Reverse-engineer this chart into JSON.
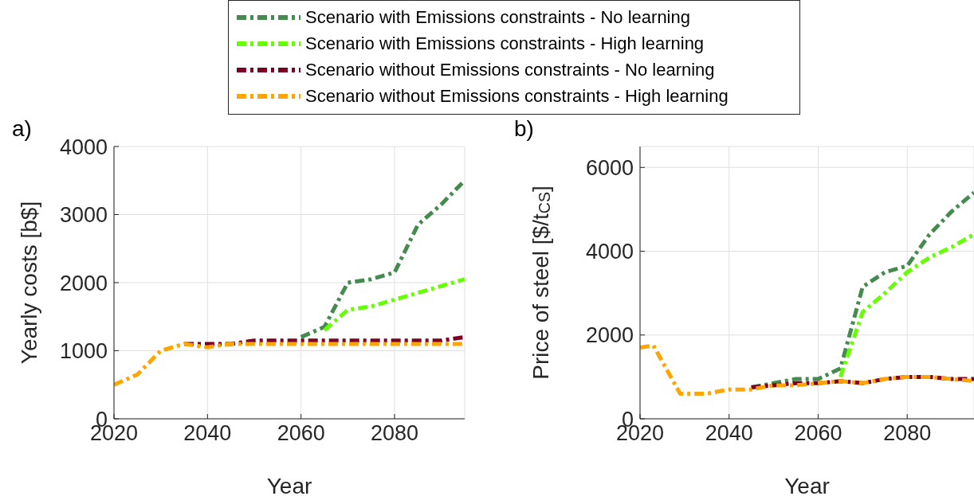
{
  "chart_data": [
    {
      "type": "line",
      "title": "a)",
      "xlabel": "Year",
      "ylabel": "Yearly costs [b$]",
      "x": [
        2020,
        2025,
        2030,
        2035,
        2040,
        2045,
        2050,
        2055,
        2060,
        2065,
        2070,
        2075,
        2080,
        2085,
        2090,
        2095
      ],
      "xlim": [
        2020,
        2095
      ],
      "xticks": [
        2020,
        2040,
        2060,
        2080
      ],
      "ylim": [
        0,
        4000
      ],
      "yticks": [
        0,
        1000,
        2000,
        3000,
        4000
      ],
      "grid": true,
      "legend": "top",
      "line_style": "dashed",
      "series": [
        {
          "name": "Scenario with Emissions constraints - No learning",
          "color": "#458b4f",
          "values": [
            null,
            null,
            null,
            null,
            null,
            null,
            null,
            null,
            1200,
            1350,
            2000,
            2050,
            2150,
            2850,
            3150,
            3500
          ]
        },
        {
          "name": "Scenario with Emissions constraints - High learning",
          "color": "#66ff00",
          "values": [
            null,
            null,
            null,
            null,
            null,
            null,
            null,
            null,
            null,
            1300,
            1600,
            1650,
            1750,
            1850,
            1950,
            2050
          ]
        },
        {
          "name": "Scenario without Emissions constraints - No learning",
          "color": "#7a0026",
          "values": [
            null,
            null,
            null,
            1100,
            1100,
            1100,
            1150,
            1150,
            1150,
            1150,
            1150,
            1150,
            1150,
            1150,
            1150,
            1200
          ]
        },
        {
          "name": "Scenario without Emissions constraints - High learning",
          "color": "#ffa500",
          "values": [
            500,
            650,
            1000,
            1100,
            1050,
            1100,
            1100,
            1100,
            1100,
            1100,
            1100,
            1100,
            1100,
            1100,
            1100,
            1100
          ]
        }
      ]
    },
    {
      "type": "line",
      "title": "b)",
      "xlabel": "Year",
      "ylabel": "Price of steel [$/t$_{CS}$]",
      "x": [
        2020,
        2023,
        2029,
        2035,
        2040,
        2045,
        2050,
        2055,
        2060,
        2065,
        2070,
        2075,
        2080,
        2085,
        2090,
        2095
      ],
      "xlim": [
        2020,
        2095
      ],
      "xticks": [
        2020,
        2040,
        2060,
        2080
      ],
      "ylim": [
        0,
        6500
      ],
      "yticks": [
        0,
        2000,
        4000,
        6000
      ],
      "grid": true,
      "line_style": "dashed",
      "series": [
        {
          "color": "#458b4f",
          "values": [
            null,
            null,
            null,
            null,
            null,
            750,
            850,
            950,
            950,
            1200,
            3150,
            3500,
            3650,
            4400,
            4950,
            5400
          ]
        },
        {
          "color": "#66ff00",
          "values": [
            null,
            null,
            null,
            null,
            null,
            null,
            null,
            null,
            null,
            1000,
            2550,
            3000,
            3500,
            3850,
            4100,
            4400
          ]
        },
        {
          "color": "#7a0026",
          "values": [
            null,
            null,
            null,
            null,
            null,
            750,
            800,
            850,
            850,
            900,
            850,
            950,
            1000,
            1000,
            950,
            950
          ]
        },
        {
          "color": "#ffa500",
          "values": [
            1700,
            1750,
            600,
            600,
            700,
            700,
            800,
            800,
            850,
            900,
            850,
            950,
            1000,
            1000,
            950,
            900
          ]
        }
      ]
    }
  ]
}
